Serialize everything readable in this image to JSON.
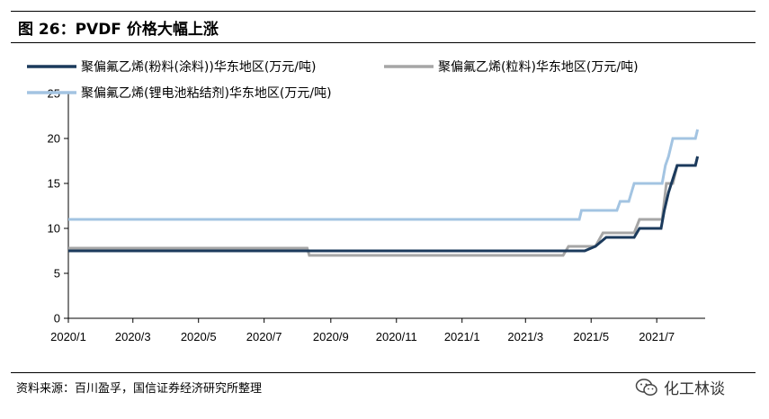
{
  "header": {
    "title": "图 26：PVDF 价格大幅上涨"
  },
  "footer": {
    "source": "资料来源：百川盈孚，国信证券经济研究所整理",
    "watermark": "化工林谈"
  },
  "chart_data": {
    "type": "line",
    "ylim": [
      0,
      25
    ],
    "yticks": [
      "0",
      "5",
      "10",
      "15",
      "20",
      "25"
    ],
    "xlim": [
      "2020-01-01",
      "2021-08-15"
    ],
    "xticks": [
      {
        "date": "2020-01-01",
        "label": "2020/1"
      },
      {
        "date": "2020-03-01",
        "label": "2020/3"
      },
      {
        "date": "2020-05-01",
        "label": "2020/5"
      },
      {
        "date": "2020-07-01",
        "label": "2020/7"
      },
      {
        "date": "2020-09-01",
        "label": "2020/9"
      },
      {
        "date": "2020-11-01",
        "label": "2020/11"
      },
      {
        "date": "2021-01-01",
        "label": "2021/1"
      },
      {
        "date": "2021-03-01",
        "label": "2021/3"
      },
      {
        "date": "2021-05-01",
        "label": "2021/5"
      },
      {
        "date": "2021-07-01",
        "label": "2021/7"
      }
    ],
    "series": [
      {
        "name": "聚偏氟乙烯(粉料(涂料))华东地区(万元/吨)",
        "color": "#1b3a5c",
        "points": [
          [
            "2020-01-01",
            7.5
          ],
          [
            "2021-04-25",
            7.5
          ],
          [
            "2021-05-05",
            8.0
          ],
          [
            "2021-05-15",
            9.0
          ],
          [
            "2021-06-10",
            9.0
          ],
          [
            "2021-06-15",
            10.0
          ],
          [
            "2021-07-05",
            10.0
          ],
          [
            "2021-07-08",
            12.0
          ],
          [
            "2021-07-12",
            14.0
          ],
          [
            "2021-07-16",
            15.5
          ],
          [
            "2021-07-20",
            17.0
          ],
          [
            "2021-08-06",
            17.0
          ],
          [
            "2021-08-08",
            18.0
          ]
        ]
      },
      {
        "name": "聚偏氟乙烯(粒料)华东地区(万元/吨)",
        "color": "#a6a6a6",
        "points": [
          [
            "2020-01-01",
            7.8
          ],
          [
            "2020-08-10",
            7.8
          ],
          [
            "2020-08-12",
            7.0
          ],
          [
            "2021-04-05",
            7.0
          ],
          [
            "2021-04-10",
            8.0
          ],
          [
            "2021-05-05",
            8.0
          ],
          [
            "2021-05-12",
            9.5
          ],
          [
            "2021-06-10",
            9.5
          ],
          [
            "2021-06-15",
            11.0
          ],
          [
            "2021-07-06",
            11.0
          ],
          [
            "2021-07-10",
            15.0
          ],
          [
            "2021-07-16",
            15.0
          ],
          [
            "2021-07-20",
            17.0
          ],
          [
            "2021-08-06",
            17.0
          ],
          [
            "2021-08-08",
            18.0
          ]
        ]
      },
      {
        "name": "聚偏氟乙烯(锂电池粘结剂)华东地区(万元/吨)",
        "color": "#a3c4e2",
        "points": [
          [
            "2020-01-01",
            11.0
          ],
          [
            "2021-04-20",
            11.0
          ],
          [
            "2021-04-22",
            12.0
          ],
          [
            "2021-05-25",
            12.0
          ],
          [
            "2021-05-28",
            13.0
          ],
          [
            "2021-06-05",
            13.0
          ],
          [
            "2021-06-10",
            15.0
          ],
          [
            "2021-07-06",
            15.0
          ],
          [
            "2021-07-09",
            17.0
          ],
          [
            "2021-07-12",
            18.0
          ],
          [
            "2021-07-16",
            20.0
          ],
          [
            "2021-08-06",
            20.0
          ],
          [
            "2021-08-08",
            21.0
          ]
        ]
      }
    ]
  }
}
